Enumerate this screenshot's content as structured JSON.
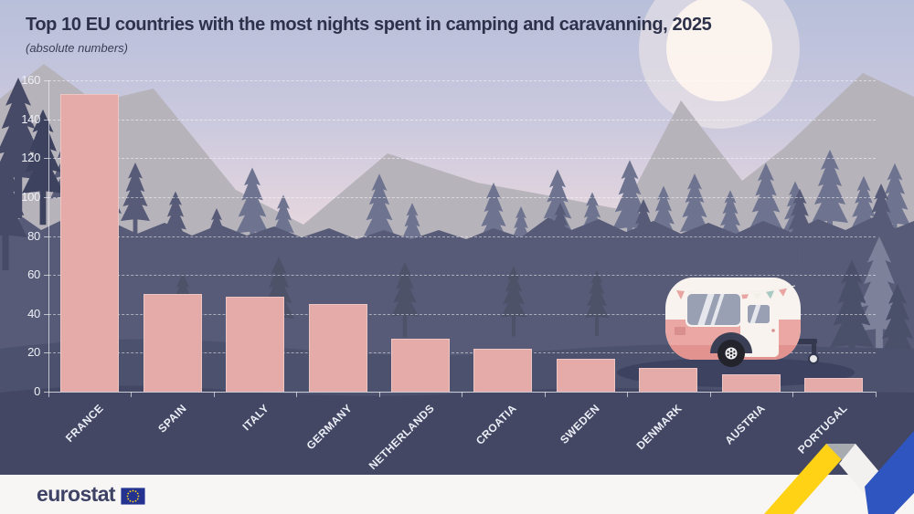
{
  "header": {
    "title": "Top 10 EU countries with the most nights spent in camping and caravanning, 2025",
    "subtitle": "(absolute numbers)"
  },
  "chart_data": {
    "type": "bar",
    "title": "Top 10 EU countries with the most nights spent in camping and caravanning, 2025",
    "subtitle": "(absolute numbers)",
    "categories": [
      "FRANCE",
      "SPAIN",
      "ITALY",
      "GERMANY",
      "NETHERLANDS",
      "CROATIA",
      "SWEDEN",
      "DENMARK",
      "AUSTRIA",
      "PORTUGAL"
    ],
    "values": [
      153,
      50,
      49,
      45,
      27,
      22,
      17,
      12,
      9,
      7
    ],
    "xlabel": "",
    "ylabel": "",
    "ylim": [
      0,
      160
    ],
    "yticks": [
      0,
      20,
      40,
      60,
      80,
      100,
      120,
      140,
      160
    ],
    "grid": "horizontal-dashed",
    "legend": "none",
    "bar_color": "#e5aba8"
  },
  "footer": {
    "logo_text": "eurostat",
    "flag_icon": "eu-flag-icon"
  },
  "colors": {
    "bar": "#e5aba8",
    "title_text": "#2d3149",
    "axis_text": "#eef0f6",
    "ribbon_yellow": "#ffd215",
    "ribbon_blue": "#2e55c0",
    "flag_blue": "#24338f",
    "flag_stars": "#ffd617"
  }
}
